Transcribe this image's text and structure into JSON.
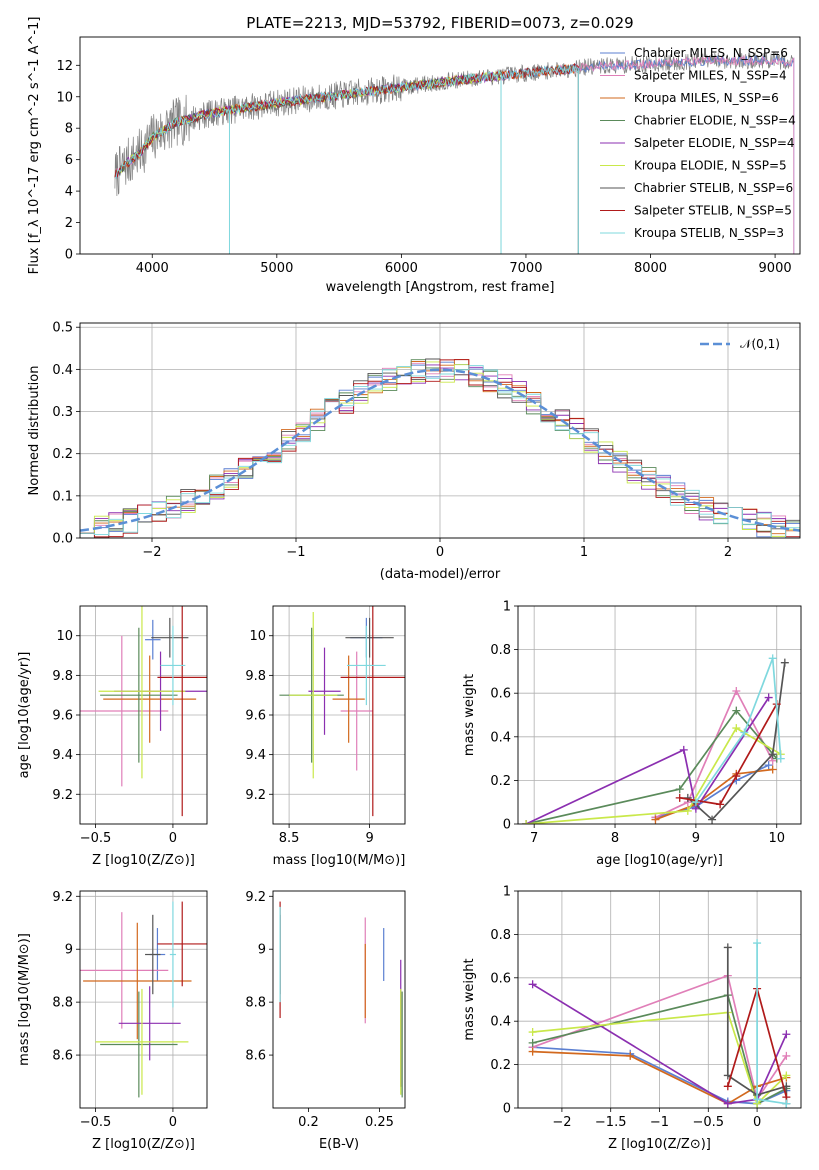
{
  "figure": {
    "title": "PLATE=2213, MJD=53792, FIBERID=0073, z=0.029"
  },
  "series_names": [
    "Chabrier MILES, N_SSP=6",
    "Salpeter MILES, N_SSP=4",
    "Kroupa MILES, N_SSP=6",
    "Chabrier ELODIE, N_SSP=4",
    "Salpeter ELODIE, N_SSP=4",
    "Kroupa ELODIE, N_SSP=5",
    "Chabrier STELIB, N_SSP=6",
    "Salpeter STELIB, N_SSP=5",
    "Kroupa STELIB, N_SSP=3"
  ],
  "colors": [
    "#5b7fd1",
    "#e07fb8",
    "#d2691e",
    "#5a8a5a",
    "#8b2fb0",
    "#c9e84a",
    "#555555",
    "#b01a1a",
    "#7fd8de"
  ],
  "chart_data": [
    {
      "id": "spectrum",
      "type": "line",
      "title": "PLATE=2213, MJD=53792, FIBERID=0073, z=0.029",
      "xlabel": "wavelength [Angstrom, rest frame]",
      "ylabel": "Flux [f_λ 10^-17 erg cm^-2 s^-1 A^-1]",
      "xlim": [
        3420,
        9200
      ],
      "ylim": [
        0,
        13.8
      ],
      "xticks": [
        4000,
        5000,
        6000,
        7000,
        8000,
        9000
      ],
      "yticks": [
        0,
        2,
        4,
        6,
        8,
        10,
        12
      ],
      "legend_position": "top-right",
      "grid": false,
      "data_range": [
        3700,
        9150
      ],
      "continuum": [
        [
          3700,
          5.0
        ],
        [
          3800,
          5.8
        ],
        [
          3900,
          6.4
        ],
        [
          4000,
          7.4
        ],
        [
          4200,
          8.4
        ],
        [
          4500,
          9.0
        ],
        [
          5000,
          9.6
        ],
        [
          5500,
          10.1
        ],
        [
          6000,
          10.6
        ],
        [
          6500,
          11.1
        ],
        [
          7000,
          11.5
        ],
        [
          7500,
          11.9
        ],
        [
          8000,
          12.1
        ],
        [
          8500,
          12.3
        ],
        [
          9000,
          12.3
        ],
        [
          9150,
          12.2
        ]
      ],
      "model_series": [
        "Chabrier MILES, N_SSP=6",
        "Salpeter MILES, N_SSP=4",
        "Kroupa MILES, N_SSP=6",
        "Chabrier ELODIE, N_SSP=4",
        "Salpeter ELODIE, N_SSP=4",
        "Kroupa ELODIE, N_SSP=5",
        "Chabrier STELIB, N_SSP=6",
        "Salpeter STELIB, N_SSP=5",
        "Kroupa STELIB, N_SSP=3"
      ],
      "model_ranges": [
        [
          3700,
          9150
        ],
        [
          3700,
          9150
        ],
        [
          3700,
          7420
        ],
        [
          3700,
          6800
        ],
        [
          3700,
          6800
        ],
        [
          3700,
          6800
        ],
        [
          3700,
          7420
        ],
        [
          3700,
          7420
        ],
        [
          3700,
          7420
        ]
      ],
      "drops": [
        [
          4620,
          0
        ],
        [
          6800,
          0
        ],
        [
          7420,
          0
        ]
      ]
    },
    {
      "id": "residuals",
      "type": "histogram",
      "xlabel": "(data-model)/error",
      "ylabel": "Normed distribution",
      "xlim": [
        -2.5,
        2.5
      ],
      "ylim": [
        0,
        0.51
      ],
      "xticks": [
        -2,
        -1,
        0,
        1,
        2
      ],
      "yticks": [
        0.0,
        0.1,
        0.2,
        0.3,
        0.4,
        0.5
      ],
      "grid": true,
      "bin_width": 0.1,
      "reference_curve": {
        "label": "𝒩(0,1)",
        "mean": 0,
        "sigma": 1
      },
      "legend_position": "top-right"
    },
    {
      "id": "age-vs-Z",
      "type": "errorbar",
      "xlabel": "Z [log10(Z/Z⊙)]",
      "ylabel": "age [log10(age/yr)]",
      "xlim": [
        -0.6,
        0.22
      ],
      "ylim": [
        9.05,
        10.15
      ],
      "xticks": [
        -0.5,
        0.0
      ],
      "yticks": [
        9.2,
        9.4,
        9.6,
        9.8,
        10.0
      ],
      "grid": true,
      "points": [
        {
          "x": -0.13,
          "y": 9.98,
          "xerr": 0.05,
          "yerr": 0.1,
          "c": 0
        },
        {
          "x": -0.33,
          "y": 9.62,
          "xerr": 0.3,
          "yerr": 0.38,
          "c": 1
        },
        {
          "x": -0.15,
          "y": 9.68,
          "xerr": 0.3,
          "yerr": 0.22,
          "c": 2
        },
        {
          "x": -0.22,
          "y": 9.7,
          "xerr": 0.25,
          "yerr": 0.34,
          "c": 3
        },
        {
          "x": -0.08,
          "y": 9.72,
          "xerr": 0.3,
          "yerr": 0.2,
          "c": 4
        },
        {
          "x": -0.2,
          "y": 9.72,
          "xerr": 0.28,
          "yerr": 0.44,
          "c": 5
        },
        {
          "x": -0.02,
          "y": 9.99,
          "xerr": 0.12,
          "yerr": 0.1,
          "c": 6
        },
        {
          "x": 0.06,
          "y": 9.79,
          "xerr": 0.16,
          "yerr": 0.7,
          "c": 7
        },
        {
          "x": 0.0,
          "y": 9.85,
          "xerr": 0.08,
          "yerr": 0.2,
          "c": 8
        }
      ]
    },
    {
      "id": "age-vs-mass",
      "type": "errorbar",
      "xlabel": "mass [log10(M/M⊙)]",
      "ylabel": "",
      "xlim": [
        8.4,
        9.22
      ],
      "ylim": [
        9.05,
        10.15
      ],
      "xticks": [
        8.5,
        9.0
      ],
      "yticks": [
        9.2,
        9.4,
        9.6,
        9.8,
        10.0
      ],
      "grid": true,
      "points": [
        {
          "x": 8.98,
          "y": 9.99,
          "xerr": 0.1,
          "yerr": 0.1,
          "c": 0
        },
        {
          "x": 8.92,
          "y": 9.62,
          "xerr": 0.1,
          "yerr": 0.3,
          "c": 1
        },
        {
          "x": 8.87,
          "y": 9.68,
          "xerr": 0.1,
          "yerr": 0.22,
          "c": 2
        },
        {
          "x": 8.64,
          "y": 9.7,
          "xerr": 0.2,
          "yerr": 0.34,
          "c": 3
        },
        {
          "x": 8.72,
          "y": 9.72,
          "xerr": 0.1,
          "yerr": 0.22,
          "c": 4
        },
        {
          "x": 8.65,
          "y": 9.7,
          "xerr": 0.15,
          "yerr": 0.42,
          "c": 5
        },
        {
          "x": 9.0,
          "y": 9.99,
          "xerr": 0.15,
          "yerr": 0.1,
          "c": 6
        },
        {
          "x": 9.02,
          "y": 9.79,
          "xerr": 0.2,
          "yerr": 0.7,
          "c": 7
        },
        {
          "x": 8.98,
          "y": 9.85,
          "xerr": 0.12,
          "yerr": 0.2,
          "c": 8
        }
      ]
    },
    {
      "id": "weight-vs-age",
      "type": "line",
      "xlabel": "age [log10(age/yr)]",
      "ylabel": "mass weight",
      "xlim": [
        6.8,
        10.3
      ],
      "ylim": [
        0.0,
        1.0
      ],
      "xticks": [
        7,
        8,
        9,
        10
      ],
      "yticks": [
        0.0,
        0.2,
        0.4,
        0.6,
        0.8,
        1.0
      ],
      "grid": true,
      "series": [
        {
          "c": 0,
          "x": [
            8.5,
            9.0,
            9.5,
            9.9
          ],
          "y": [
            0.03,
            0.08,
            0.2,
            0.27
          ]
        },
        {
          "c": 1,
          "x": [
            8.5,
            8.9,
            9.5,
            9.95
          ],
          "y": [
            0.03,
            0.1,
            0.61,
            0.29
          ]
        },
        {
          "c": 2,
          "x": [
            8.5,
            9.0,
            9.5,
            9.95
          ],
          "y": [
            0.02,
            0.09,
            0.23,
            0.25
          ]
        },
        {
          "c": 3,
          "x": [
            6.9,
            8.8,
            9.5,
            10.0
          ],
          "y": [
            0.0,
            0.16,
            0.52,
            0.3
          ]
        },
        {
          "c": 4,
          "x": [
            6.9,
            8.85,
            9.0,
            9.9
          ],
          "y": [
            0.0,
            0.34,
            0.07,
            0.58
          ]
        },
        {
          "c": 5,
          "x": [
            6.9,
            8.9,
            9.5,
            10.05
          ],
          "y": [
            0.0,
            0.06,
            0.44,
            0.32
          ]
        },
        {
          "c": 6,
          "x": [
            8.9,
            9.2,
            9.95,
            10.1
          ],
          "y": [
            0.12,
            0.02,
            0.32,
            0.74
          ]
        },
        {
          "c": 7,
          "x": [
            8.8,
            9.3,
            9.5,
            10.0
          ],
          "y": [
            0.12,
            0.09,
            0.22,
            0.55
          ]
        },
        {
          "c": 8,
          "x": [
            9.0,
            9.6,
            9.95,
            10.05
          ],
          "y": [
            0.1,
            0.42,
            0.76,
            0.3
          ]
        }
      ]
    },
    {
      "id": "mass-vs-Z",
      "type": "errorbar",
      "xlabel": "Z [log10(Z/Z⊙)]",
      "ylabel": "mass [log10(M/M⊙)]",
      "xlim": [
        -0.6,
        0.22
      ],
      "ylim": [
        8.4,
        9.22
      ],
      "xticks": [
        -0.5,
        0.0
      ],
      "yticks": [
        8.6,
        8.8,
        9.0,
        9.2
      ],
      "grid": true,
      "points": [
        {
          "x": -0.1,
          "y": 8.98,
          "xerr": 0.05,
          "yerr": 0.1,
          "c": 0
        },
        {
          "x": -0.33,
          "y": 8.92,
          "xerr": 0.3,
          "yerr": 0.22,
          "c": 1
        },
        {
          "x": -0.23,
          "y": 8.88,
          "xerr": 0.35,
          "yerr": 0.22,
          "c": 2
        },
        {
          "x": -0.22,
          "y": 8.64,
          "xerr": 0.25,
          "yerr": 0.2,
          "c": 3
        },
        {
          "x": -0.15,
          "y": 8.72,
          "xerr": 0.2,
          "yerr": 0.14,
          "c": 4
        },
        {
          "x": -0.2,
          "y": 8.65,
          "xerr": 0.3,
          "yerr": 0.2,
          "c": 5
        },
        {
          "x": -0.13,
          "y": 8.98,
          "xerr": 0.05,
          "yerr": 0.15,
          "c": 6
        },
        {
          "x": 0.06,
          "y": 9.02,
          "xerr": 0.16,
          "yerr": 0.16,
          "c": 7
        },
        {
          "x": 0.0,
          "y": 8.98,
          "xerr": 0.02,
          "yerr": 0.2,
          "c": 8
        }
      ]
    },
    {
      "id": "mass-vs-ebv",
      "type": "errorbar",
      "xlabel": "E(B-V)",
      "ylabel": "",
      "xlim": [
        0.175,
        0.268
      ],
      "ylim": [
        8.4,
        9.22
      ],
      "xticks": [
        0.2,
        0.25
      ],
      "yticks": [
        8.6,
        8.8,
        9.0,
        9.2
      ],
      "grid": false,
      "points": [
        {
          "x": 0.253,
          "y": 8.98,
          "xerr": 0,
          "yerr": 0.1,
          "c": 0
        },
        {
          "x": 0.24,
          "y": 8.92,
          "xerr": 0,
          "yerr": 0.2,
          "c": 1
        },
        {
          "x": 0.24,
          "y": 8.88,
          "xerr": 0,
          "yerr": 0.14,
          "c": 2
        },
        {
          "x": 0.266,
          "y": 8.64,
          "xerr": 0,
          "yerr": 0.2,
          "c": 3
        },
        {
          "x": 0.265,
          "y": 8.72,
          "xerr": 0,
          "yerr": 0.24,
          "c": 4
        },
        {
          "x": 0.265,
          "y": 8.65,
          "xerr": 0,
          "yerr": 0.2,
          "c": 5
        },
        {
          "x": 0.18,
          "y": 8.98,
          "xerr": 0,
          "yerr": 0.15,
          "c": 6
        },
        {
          "x": 0.18,
          "y": 8.96,
          "xerr": 0,
          "yerr": 0.22,
          "c": 7
        },
        {
          "x": 0.18,
          "y": 8.98,
          "xerr": 0,
          "yerr": 0.18,
          "c": 8
        }
      ]
    },
    {
      "id": "weight-vs-Z",
      "type": "line",
      "xlabel": "Z [log10(Z/Z⊙)]",
      "ylabel": "mass weight",
      "xlim": [
        -2.45,
        0.45
      ],
      "ylim": [
        0.0,
        1.0
      ],
      "xticks": [
        -2.0,
        -1.5,
        -1.0,
        -0.5,
        0.0
      ],
      "yticks": [
        0.0,
        0.2,
        0.4,
        0.6,
        0.8,
        1.0
      ],
      "grid": true,
      "series": [
        {
          "c": 0,
          "x": [
            -2.3,
            -1.3,
            -0.3,
            0.0,
            0.3
          ],
          "y": [
            0.28,
            0.25,
            0.03,
            0.02,
            0.08
          ]
        },
        {
          "c": 1,
          "x": [
            -2.3,
            -0.3,
            0.0,
            0.3
          ],
          "y": [
            0.28,
            0.61,
            0.04,
            0.24
          ]
        },
        {
          "c": 2,
          "x": [
            -2.3,
            -1.3,
            -0.3,
            0.0,
            0.3
          ],
          "y": [
            0.26,
            0.24,
            0.02,
            0.1,
            0.14
          ]
        },
        {
          "c": 3,
          "x": [
            -2.3,
            -0.3,
            0.0,
            0.3
          ],
          "y": [
            0.3,
            0.52,
            0.02,
            0.09
          ]
        },
        {
          "c": 4,
          "x": [
            -2.3,
            -0.3,
            0.0,
            0.3
          ],
          "y": [
            0.57,
            0.02,
            0.04,
            0.34
          ]
        },
        {
          "c": 5,
          "x": [
            -2.3,
            -0.3,
            0.0,
            0.3
          ],
          "y": [
            0.35,
            0.44,
            0.02,
            0.15
          ]
        },
        {
          "c": 6,
          "x": [
            -0.3,
            -0.3,
            0.0,
            0.3,
            0.3
          ],
          "y": [
            0.74,
            0.15,
            0.06,
            0.1,
            0.02
          ]
        },
        {
          "c": 7,
          "x": [
            -0.3,
            0.0,
            0.3
          ],
          "y": [
            0.1,
            0.55,
            0.05
          ]
        },
        {
          "c": 8,
          "x": [
            0.0,
            0.0,
            0.3
          ],
          "y": [
            0.76,
            0.04,
            0.02
          ]
        }
      ]
    }
  ]
}
